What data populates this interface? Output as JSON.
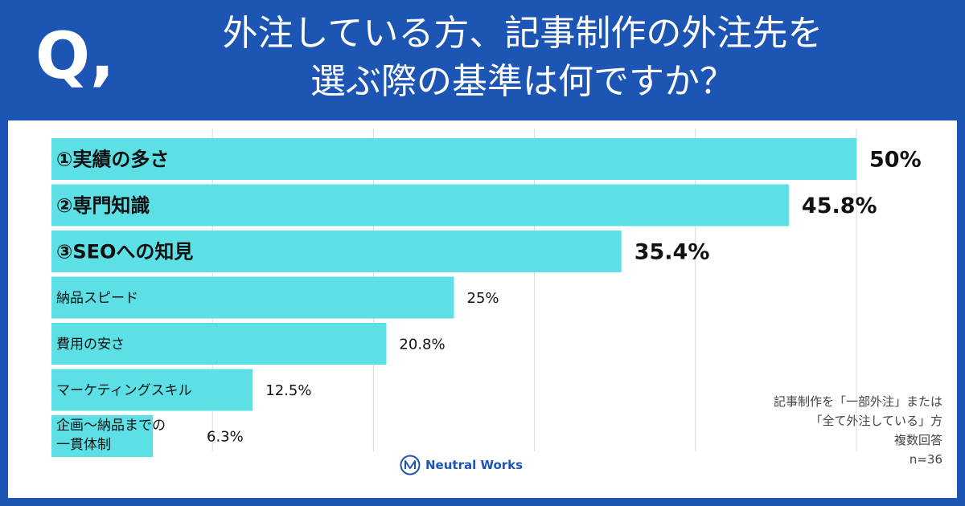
{
  "header": {
    "q_mark": "Q,",
    "title_line1": "外注している方、記事制作の外注先を",
    "title_line2": "選ぶ際の基準は何ですか？"
  },
  "note": {
    "line1": "記事制作を「一部外注」または",
    "line2": "「全て外注している」方",
    "line3": "複数回答",
    "line4": "n=36"
  },
  "logo": {
    "text": "Neutral Works"
  },
  "colors": {
    "background": "#1d55b4",
    "bar": "#5ce0e6",
    "grid": "#d9d9d9",
    "text": "#111111"
  },
  "chart_data": {
    "type": "bar",
    "orientation": "horizontal",
    "title": "外注している方、記事制作の外注先を選ぶ際の基準は何ですか？",
    "categories": [
      "①実績の多さ",
      "②専門知識",
      "③SEOへの知見",
      "納品スピード",
      "費用の安さ",
      "マーケティングスキル",
      "企画〜納品までの一貫体制"
    ],
    "category_lines": [
      [
        "①実績の多さ"
      ],
      [
        "②専門知識"
      ],
      [
        "③SEOへの知見"
      ],
      [
        "納品スピード"
      ],
      [
        "費用の安さ"
      ],
      [
        "マーケティングスキル"
      ],
      [
        "企画〜納品までの",
        "一貫体制"
      ]
    ],
    "values": [
      50,
      45.8,
      35.4,
      25,
      20.8,
      12.5,
      6.3
    ],
    "value_labels": [
      "50%",
      "45.8%",
      "35.4%",
      "25%",
      "20.8%",
      "12.5%",
      "6.3%"
    ],
    "highlighted": [
      true,
      true,
      true,
      false,
      false,
      false,
      false
    ],
    "xlim": [
      0,
      50
    ],
    "grid": true,
    "xlabel": "",
    "ylabel": ""
  }
}
